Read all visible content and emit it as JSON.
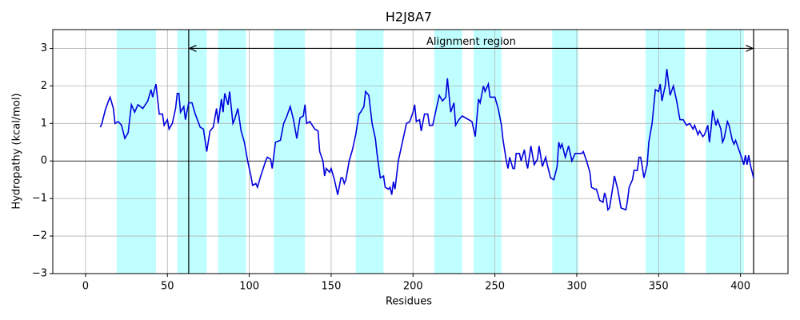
{
  "chart_data": {
    "type": "line",
    "title": "H2J8A7",
    "xlabel": "Residues",
    "ylabel": "Hydropathy (kcal/mol)",
    "annotation": "Alignment region",
    "xlim": [
      -20,
      429
    ],
    "ylim": [
      -3,
      3.5
    ],
    "xticks": [
      0,
      50,
      100,
      150,
      200,
      250,
      300,
      350,
      400
    ],
    "yticks": [
      {
        "value": -3,
        "label": "−3"
      },
      {
        "value": -2,
        "label": "−2"
      },
      {
        "value": -1,
        "label": "−1"
      },
      0,
      1,
      2,
      3
    ],
    "grid": true,
    "regions": [
      [
        19,
        43
      ],
      [
        56,
        74
      ],
      [
        81,
        98
      ],
      [
        115,
        134
      ],
      [
        165,
        182
      ],
      [
        213,
        230
      ],
      [
        237,
        254
      ],
      [
        285,
        301
      ],
      [
        342,
        366
      ],
      [
        379,
        402
      ]
    ],
    "region_color": "#c0ffff",
    "vlines": [
      63,
      408
    ],
    "arrow_y": 3,
    "series": [
      {
        "color": "#0000dd",
        "x": [
          9,
          10,
          12,
          14,
          15,
          17,
          18,
          20,
          22,
          24,
          26,
          28,
          30,
          32,
          35,
          38,
          40,
          41,
          43,
          45,
          47,
          48,
          50,
          51,
          53,
          55,
          56,
          57,
          58,
          60,
          61,
          63,
          65,
          67,
          70,
          72,
          74,
          76,
          78,
          80,
          81,
          83,
          84,
          85,
          87,
          88,
          90,
          91,
          93,
          95,
          97,
          99,
          101,
          102,
          104,
          105,
          107,
          110,
          111,
          113,
          114,
          116,
          119,
          121,
          123,
          125,
          127,
          129,
          131,
          133,
          134,
          135,
          137,
          140,
          142,
          143,
          145,
          146,
          147,
          149,
          150,
          152,
          154,
          156,
          157,
          158,
          159,
          161,
          163,
          165,
          167,
          168,
          170,
          171,
          173,
          175,
          177,
          178,
          180,
          182,
          183,
          185,
          186,
          187,
          188,
          189,
          191,
          192,
          194,
          196,
          198,
          200,
          201,
          202,
          204,
          205,
          207,
          209,
          210,
          212,
          214,
          216,
          218,
          220,
          221,
          223,
          225,
          226,
          228,
          230,
          234,
          236,
          238,
          240,
          241,
          243,
          244,
          246,
          247,
          250,
          252,
          254,
          255,
          257,
          258,
          259,
          261,
          262,
          263,
          265,
          266,
          268,
          269,
          270,
          272,
          274,
          276,
          277,
          279,
          281,
          282,
          284,
          286,
          288,
          289,
          290,
          291,
          293,
          295,
          297,
          299,
          301,
          303,
          304,
          306,
          308,
          309,
          311,
          312,
          313,
          314,
          316,
          317,
          318,
          319,
          320,
          322,
          323,
          325,
          326,
          327,
          330,
          331,
          332,
          334,
          335,
          337,
          338,
          339,
          340,
          341,
          343,
          344,
          346,
          348,
          350,
          351,
          352,
          354,
          355,
          357,
          359,
          361,
          363,
          365,
          367,
          369,
          371,
          372,
          374,
          375,
          377,
          378,
          380,
          381,
          382,
          383,
          385,
          386,
          388,
          389,
          390,
          392,
          393,
          395,
          396,
          397,
          399,
          401,
          402,
          403,
          404,
          405,
          406,
          408
        ],
        "values": [
          0.9,
          1.0,
          1.35,
          1.6,
          1.7,
          1.4,
          1.0,
          1.05,
          0.95,
          0.6,
          0.75,
          1.5,
          1.3,
          1.5,
          1.4,
          1.6,
          1.9,
          1.7,
          2.05,
          1.25,
          1.25,
          0.95,
          1.1,
          0.85,
          1.0,
          1.4,
          1.8,
          1.8,
          1.3,
          1.45,
          1.1,
          1.55,
          1.55,
          1.25,
          0.9,
          0.85,
          0.25,
          0.8,
          0.9,
          1.4,
          1.0,
          1.65,
          1.3,
          1.8,
          1.5,
          1.85,
          1.0,
          1.1,
          1.4,
          0.8,
          0.5,
          0.0,
          -0.4,
          -0.65,
          -0.6,
          -0.7,
          -0.4,
          0.0,
          0.1,
          0.05,
          -0.2,
          0.5,
          0.55,
          1.0,
          1.2,
          1.45,
          1.1,
          0.6,
          1.15,
          1.2,
          1.5,
          1.0,
          1.05,
          0.85,
          0.8,
          0.25,
          0.0,
          -0.4,
          -0.2,
          -0.3,
          -0.2,
          -0.5,
          -0.9,
          -0.45,
          -0.45,
          -0.6,
          -0.5,
          0.0,
          0.3,
          0.7,
          1.25,
          1.3,
          1.45,
          1.85,
          1.75,
          1.0,
          0.6,
          0.2,
          -0.45,
          -0.4,
          -0.7,
          -0.75,
          -0.7,
          -0.9,
          -0.55,
          -0.75,
          0.0,
          0.2,
          0.6,
          1.0,
          1.05,
          1.3,
          1.5,
          1.05,
          1.1,
          0.8,
          1.25,
          1.25,
          0.95,
          0.95,
          1.35,
          1.75,
          1.6,
          1.7,
          2.2,
          1.3,
          1.55,
          0.95,
          1.1,
          1.2,
          1.1,
          1.05,
          0.65,
          1.65,
          1.55,
          2.0,
          1.85,
          2.05,
          1.7,
          1.7,
          1.4,
          0.95,
          0.55,
          0.0,
          -0.2,
          0.1,
          -0.2,
          -0.2,
          0.2,
          0.2,
          0.0,
          0.3,
          0.0,
          -0.2,
          0.4,
          -0.1,
          0.05,
          0.4,
          -0.15,
          0.1,
          -0.1,
          -0.45,
          -0.5,
          -0.15,
          0.5,
          0.35,
          0.45,
          0.1,
          0.4,
          0.0,
          0.2,
          0.2,
          0.2,
          0.25,
          0.0,
          -0.3,
          -0.7,
          -0.75,
          -0.75,
          -0.9,
          -1.05,
          -1.1,
          -0.85,
          -1.0,
          -1.3,
          -1.25,
          -0.7,
          -0.4,
          -0.75,
          -1.0,
          -1.25,
          -1.3,
          -1.05,
          -0.7,
          -0.5,
          -0.25,
          -0.25,
          0.1,
          0.1,
          -0.15,
          -0.45,
          -0.1,
          0.5,
          1.0,
          1.9,
          1.85,
          2.05,
          1.6,
          2.0,
          2.45,
          1.75,
          2.0,
          1.6,
          1.1,
          1.1,
          0.95,
          1.0,
          0.85,
          0.95,
          0.7,
          0.8,
          0.65,
          0.7,
          0.95,
          0.5,
          0.85,
          1.35,
          0.95,
          1.1,
          0.85,
          0.5,
          0.6,
          1.05,
          0.95,
          0.55,
          0.45,
          0.55,
          0.3,
          0.05,
          -0.1,
          0.15,
          -0.1,
          0.15,
          -0.1,
          -0.45
        ]
      }
    ]
  }
}
